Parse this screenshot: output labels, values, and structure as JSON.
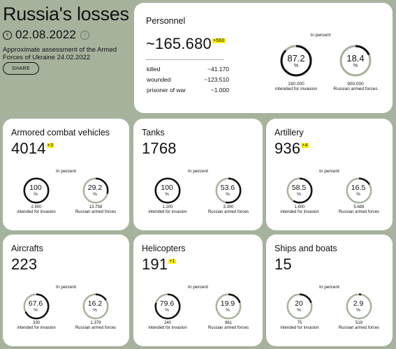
{
  "header": {
    "title": "Russia's losses",
    "date": "02.08.2022",
    "prev_icon": "chevron-left-icon",
    "next_icon": "chevron-right-icon",
    "subtitle": "Approximate assessment of the Armed Forces of Ukraine 24.02.2022",
    "share_label": "SHARE"
  },
  "personnel": {
    "title": "Personnel",
    "value": "~165.680",
    "delta": "+560",
    "breakdown": [
      {
        "label": "killed",
        "value": "~41.170"
      },
      {
        "label": "wounded",
        "value": "~123.510"
      },
      {
        "label": "prisoner of war",
        "value": "~1.000"
      }
    ],
    "in_percent": "In percent",
    "rings": [
      {
        "value": "87.2",
        "unit": "%",
        "number": "190.000",
        "caption": "intended for invasion",
        "fraction": 0.872
      },
      {
        "value": "18.4",
        "unit": "%",
        "number": "900.000",
        "caption": "Russian armed forces",
        "fraction": 0.184
      }
    ]
  },
  "cards": [
    {
      "title": "Armored combat vehicles",
      "value": "4014",
      "delta": "+3",
      "in_percent": "In percent",
      "rings": [
        {
          "value": "100",
          "unit": "%",
          "number": "2.900",
          "caption": "intended for invasion",
          "fraction": 1.0
        },
        {
          "value": "29.2",
          "unit": "%",
          "number": "13.758",
          "caption": "Russian armed forces",
          "fraction": 0.292
        }
      ]
    },
    {
      "title": "Tanks",
      "value": "1768",
      "delta": "",
      "in_percent": "In percent",
      "rings": [
        {
          "value": "100",
          "unit": "%",
          "number": "1.200",
          "caption": "intended for invasion",
          "fraction": 1.0
        },
        {
          "value": "53.6",
          "unit": "%",
          "number": "3.300",
          "caption": "Russian armed forces",
          "fraction": 0.536
        }
      ]
    },
    {
      "title": "Artillery",
      "value": "936",
      "delta": "+4",
      "in_percent": "In percent",
      "rings": [
        {
          "value": "58.5",
          "unit": "%",
          "number": "1.600",
          "caption": "intended for invasion",
          "fraction": 0.585
        },
        {
          "value": "16.5",
          "unit": "%",
          "number": "5.689",
          "caption": "Russian armed forces",
          "fraction": 0.165
        }
      ]
    },
    {
      "title": "Aircrafts",
      "value": "223",
      "delta": "",
      "in_percent": "In percent",
      "rings": [
        {
          "value": "67.6",
          "unit": "%",
          "number": "330",
          "caption": "intended for invasion",
          "fraction": 0.676
        },
        {
          "value": "16.2",
          "unit": "%",
          "number": "1.379",
          "caption": "Russian armed forces",
          "fraction": 0.162
        }
      ]
    },
    {
      "title": "Helicopters",
      "value": "191",
      "delta": "+1",
      "in_percent": "In percent",
      "rings": [
        {
          "value": "79.6",
          "unit": "%",
          "number": "240",
          "caption": "intended for invasion",
          "fraction": 0.796
        },
        {
          "value": "19.9",
          "unit": "%",
          "number": "961",
          "caption": "Russian armed forces",
          "fraction": 0.199
        }
      ]
    },
    {
      "title": "Ships and boats",
      "value": "15",
      "delta": "",
      "in_percent": "In percent",
      "rings": [
        {
          "value": "20",
          "unit": "%",
          "number": "75",
          "caption": "intended for invasion",
          "fraction": 0.2
        },
        {
          "value": "2.9",
          "unit": "%",
          "number": "519",
          "caption": "Russian armed forces",
          "fraction": 0.029
        }
      ]
    }
  ],
  "colors": {
    "background": "#a7b29d",
    "highlight": "#fff200",
    "ring_track": "#a7b29d",
    "ring_fill": "#111111"
  }
}
